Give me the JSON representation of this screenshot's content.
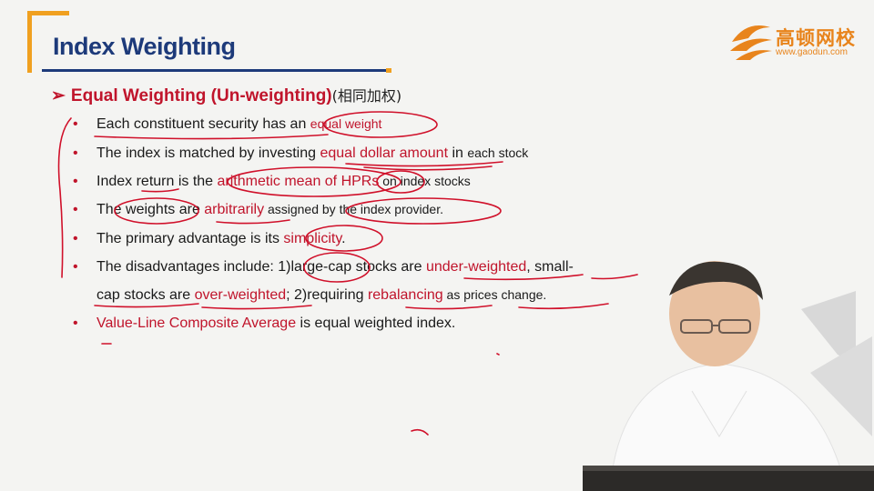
{
  "slide": {
    "title": "Index Weighting",
    "heading": {
      "bullet_glyph": "➢",
      "main": "Equal Weighting (Un-weighting)",
      "chinese": "(相同加权)"
    },
    "bullets": [
      {
        "parts": [
          {
            "text": "Each constituent security has an "
          },
          {
            "text": "equal weight",
            "red": true,
            "small": true
          }
        ]
      },
      {
        "parts": [
          {
            "text": "The index is matched by investing "
          },
          {
            "text": "equal dollar amount",
            "red": true
          },
          {
            "text": " in ",
            "small": false
          },
          {
            "text": "each stock",
            "small": true
          }
        ]
      },
      {
        "parts": [
          {
            "text": "Index return is the "
          },
          {
            "text": "arithmetic mean of HPRs",
            "red": true
          },
          {
            "text": " on index stocks",
            "small": true
          }
        ]
      },
      {
        "parts": [
          {
            "text": "The weights are "
          },
          {
            "text": "arbitrarily",
            "red": true
          },
          {
            "text": " assigned by the index provider.",
            "small": true
          }
        ]
      },
      {
        "parts": [
          {
            "text": "The primary advantage is its "
          },
          {
            "text": "simplicity",
            "red": true
          },
          {
            "text": "."
          }
        ]
      },
      {
        "parts": [
          {
            "text": "The disadvantages include: 1)large-cap stocks are "
          },
          {
            "text": "under-weighted",
            "red": true
          },
          {
            "text": ", small-"
          }
        ]
      },
      {
        "continuation": true,
        "parts": [
          {
            "text": "cap stocks are "
          },
          {
            "text": "over-weighted",
            "red": true
          },
          {
            "text": "; 2)requiring "
          },
          {
            "text": "rebalancing",
            "red": true
          },
          {
            "text": " as prices change.",
            "small": true
          }
        ]
      },
      {
        "parts": [
          {
            "text": "Value-Line Composite Average",
            "red": true
          },
          {
            "text": " is equal weighted index."
          }
        ]
      }
    ]
  },
  "logo": {
    "chinese": "高顿网校",
    "url": "www.gaodun.com"
  },
  "colors": {
    "title": "#1d3a7a",
    "accent": "#f0a020",
    "red": "#c0142b",
    "logo": "#e8841c"
  }
}
